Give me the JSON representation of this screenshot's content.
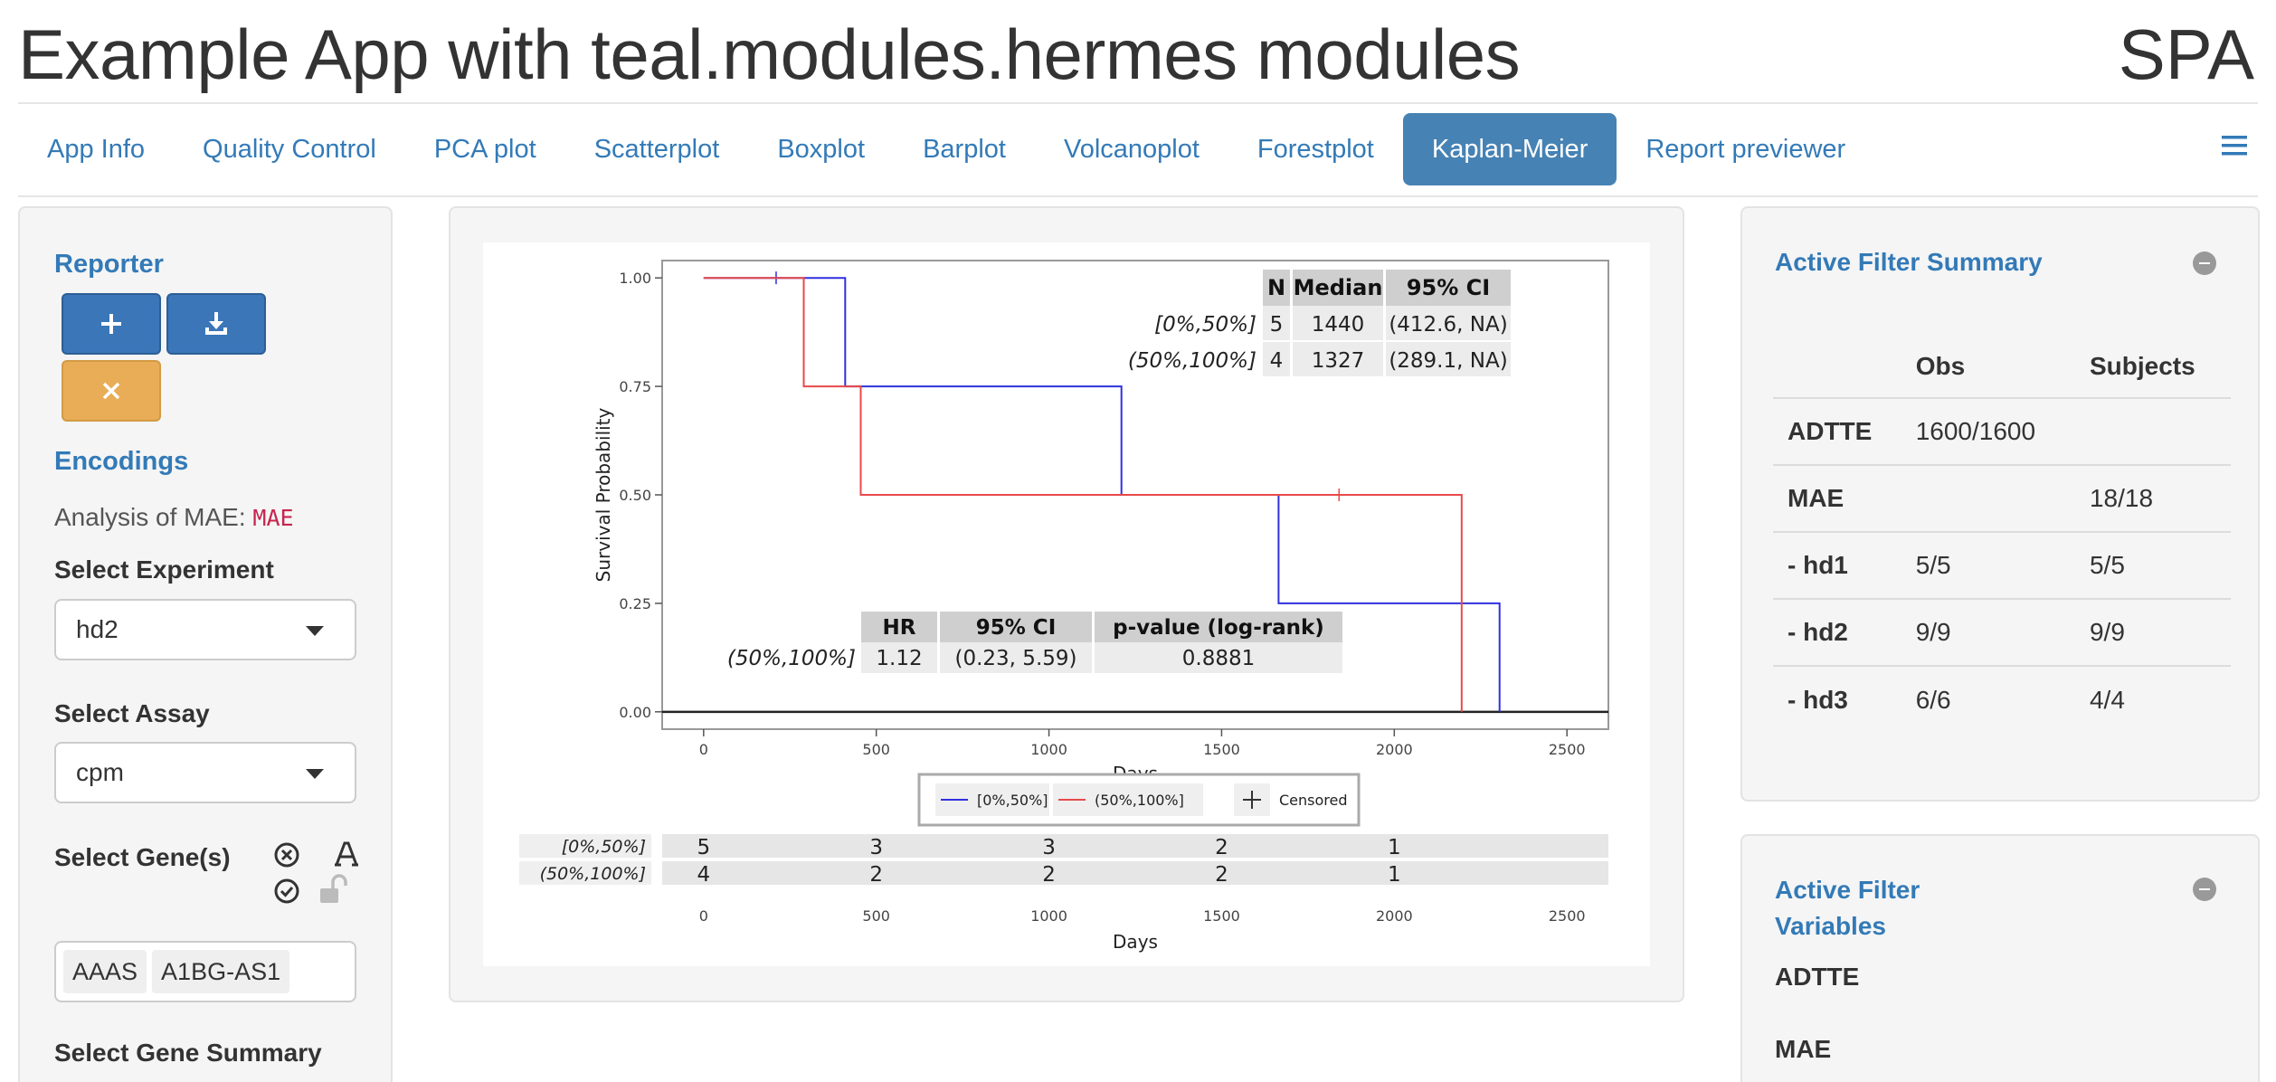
{
  "header": {
    "title": "Example App with teal.modules.hermes modules",
    "brand": "SPA"
  },
  "tabs": [
    {
      "label": "App Info",
      "active": false
    },
    {
      "label": "Quality Control",
      "active": false
    },
    {
      "label": "PCA plot",
      "active": false
    },
    {
      "label": "Scatterplot",
      "active": false
    },
    {
      "label": "Boxplot",
      "active": false
    },
    {
      "label": "Barplot",
      "active": false
    },
    {
      "label": "Volcanoplot",
      "active": false
    },
    {
      "label": "Forestplot",
      "active": false
    },
    {
      "label": "Kaplan-Meier",
      "active": true
    },
    {
      "label": "Report previewer",
      "active": false
    }
  ],
  "menu_icon": "hamburger-icon",
  "left": {
    "reporter_heading": "Reporter",
    "add_icon": "plus-icon",
    "download_icon": "download-icon",
    "reset_icon": "close-icon",
    "encodings_heading": "Encodings",
    "analysis_prefix": "Analysis of MAE:",
    "analysis_value": "MAE",
    "experiment_label": "Select Experiment",
    "experiment_value": "hd2",
    "assay_label": "Select Assay",
    "assay_value": "cpm",
    "gene_label": "Select Gene(s)",
    "gene_tags": [
      "AAAS",
      "A1BG-AS1"
    ],
    "gene_summary_label": "Select Gene Summary"
  },
  "chart_data": {
    "type": "line",
    "subtype": "step",
    "xlabel": "Days",
    "ylabel": "Survival Probability",
    "xlim": [
      -120,
      2620
    ],
    "ylim": [
      -0.04,
      1.04
    ],
    "xticks": [
      0,
      500,
      1000,
      1500,
      2000,
      2500
    ],
    "yticks": [
      "0.00",
      "0.25",
      "0.50",
      "0.75",
      "1.00"
    ],
    "colors": {
      "[0%,50%]": "#3030e0",
      "(50%,100%]": "#e84a4a"
    },
    "series": [
      {
        "name": "[0%,50%]",
        "steps": [
          [
            0,
            1.0
          ],
          [
            410,
            1.0
          ],
          [
            410,
            0.75
          ],
          [
            1210,
            0.75
          ],
          [
            1210,
            0.5
          ],
          [
            1665,
            0.5
          ],
          [
            1665,
            0.25
          ],
          [
            2305,
            0.25
          ],
          [
            2305,
            0.0
          ]
        ],
        "censored": [
          [
            210,
            1.0
          ]
        ]
      },
      {
        "name": "(50%,100%]",
        "steps": [
          [
            0,
            1.0
          ],
          [
            290,
            1.0
          ],
          [
            290,
            0.75
          ],
          [
            455,
            0.75
          ],
          [
            455,
            0.5
          ],
          [
            2195,
            0.5
          ],
          [
            2195,
            0.0
          ]
        ],
        "censored": [
          [
            1840,
            0.5
          ]
        ]
      }
    ],
    "legend": {
      "items": [
        "[0%,50%]",
        "(50%,100%]",
        "Censored"
      ],
      "position": "bottom"
    },
    "median_table": {
      "headers": [
        "N",
        "Median",
        "95% CI"
      ],
      "rows": [
        {
          "label": "[0%,50%]",
          "cells": [
            "5",
            "1440",
            "(412.6, NA)"
          ]
        },
        {
          "label": "(50%,100%]",
          "cells": [
            "4",
            "1327",
            "(289.1, NA)"
          ]
        }
      ]
    },
    "hr_table": {
      "headers": [
        "HR",
        "95% CI",
        "p-value (log-rank)"
      ],
      "rows": [
        {
          "label": "(50%,100%]",
          "cells": [
            "1.12",
            "(0.23, 5.59)",
            "0.8881"
          ]
        }
      ]
    },
    "risk_table": {
      "xlabel": "Days",
      "rows": [
        {
          "label": "[0%,50%]",
          "values": [
            "5",
            "3",
            "3",
            "2",
            "1"
          ]
        },
        {
          "label": "(50%,100%]",
          "values": [
            "4",
            "2",
            "2",
            "2",
            "1"
          ]
        }
      ],
      "at": [
        0,
        500,
        1000,
        1500,
        2000
      ]
    }
  },
  "right": {
    "summary_title": "Active Filter Summary",
    "summary_headers": [
      "",
      "Obs",
      "Subjects"
    ],
    "summary_rows": [
      {
        "name": "ADTTE",
        "obs": "1600/1600",
        "subjects": ""
      },
      {
        "name": "MAE",
        "obs": "",
        "subjects": "18/18"
      },
      {
        "name": "- hd1",
        "obs": "5/5",
        "subjects": "5/5"
      },
      {
        "name": "- hd2",
        "obs": "9/9",
        "subjects": "9/9"
      },
      {
        "name": "- hd3",
        "obs": "6/6",
        "subjects": "4/4"
      }
    ],
    "variables_title_line1": "Active Filter",
    "variables_title_line2": "Variables",
    "variables": [
      "ADTTE",
      "MAE"
    ]
  }
}
